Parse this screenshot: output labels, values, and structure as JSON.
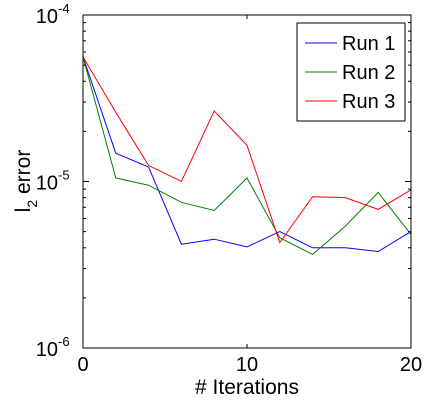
{
  "chart_data": {
    "type": "line",
    "title": "",
    "xlabel": "# Iterations",
    "ylabel": {
      "main": "l",
      "sub": "2",
      "rest": " error"
    },
    "xlim": [
      0,
      20
    ],
    "ylim": [
      1e-06,
      0.0001
    ],
    "yscale": "log",
    "grid": false,
    "legend_position": "top-right",
    "x_ticks": [
      "0",
      "10",
      "20"
    ],
    "y_ticks": [
      {
        "base": "10",
        "exp": "-6"
      },
      {
        "base": "10",
        "exp": "-5"
      },
      {
        "base": "10",
        "exp": "-4"
      }
    ],
    "x": [
      0,
      2,
      4,
      6,
      8,
      10,
      12,
      14,
      16,
      18,
      20
    ],
    "series": [
      {
        "name": "Run 1",
        "color": "#0000ff",
        "values": [
          5.6e-05,
          1.48e-05,
          1.22e-05,
          4.2e-06,
          4.5e-06,
          4.05e-06,
          5e-06,
          4e-06,
          4e-06,
          3.8e-06,
          5e-06
        ]
      },
      {
        "name": "Run 2",
        "color": "#008000",
        "values": [
          5.6e-05,
          1.05e-05,
          9.5e-06,
          7.5e-06,
          6.7e-06,
          1.05e-05,
          4.6e-06,
          3.65e-06,
          5.4e-06,
          8.6e-06,
          4.8e-06
        ]
      },
      {
        "name": "Run 3",
        "color": "#ff0000",
        "values": [
          5.6e-05,
          2.6e-05,
          1.25e-05,
          1e-05,
          2.65e-05,
          1.65e-05,
          4.3e-06,
          8.1e-06,
          8e-06,
          6.8e-06,
          8.9e-06
        ]
      }
    ]
  }
}
